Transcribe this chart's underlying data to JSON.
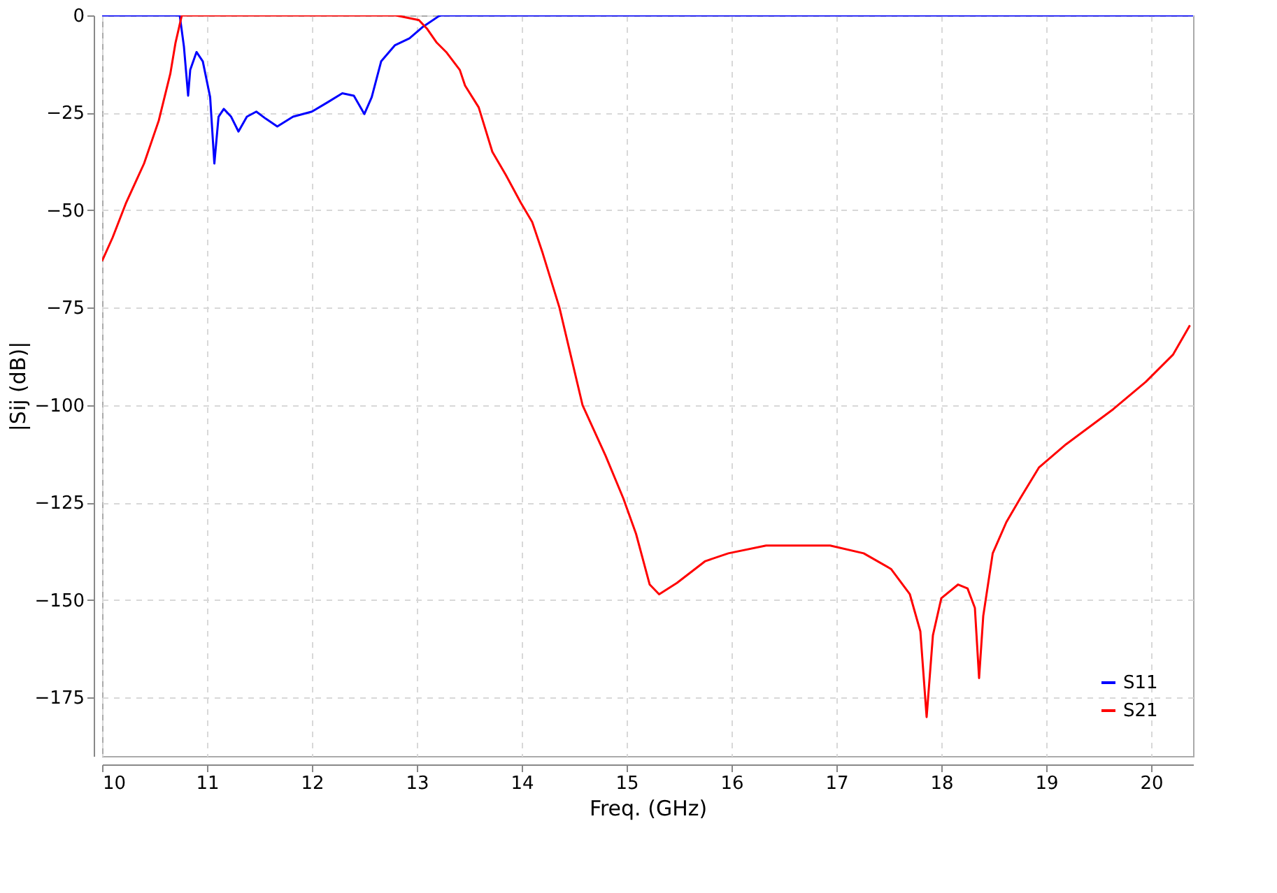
{
  "chart_data": {
    "type": "line",
    "xlabel": "Freq. (GHz)",
    "ylabel": "|Sij (dB)|",
    "xlim": [
      10,
      20.4
    ],
    "ylim": [
      -190,
      0
    ],
    "xticks": [
      10,
      11,
      12,
      13,
      14,
      15,
      16,
      17,
      18,
      19,
      20
    ],
    "yticks": [
      0,
      -25,
      -50,
      -75,
      -100,
      -125,
      -150,
      -175
    ],
    "grid": true,
    "legend": "bottom right",
    "marker": "none",
    "line_style": "solid",
    "series": [
      {
        "name": "S11",
        "color": "#0000ff",
        "x": [
          10,
          10.74,
          10.78,
          10.82,
          10.84,
          10.9,
          10.96,
          11.03,
          11.07,
          11.11,
          11.16,
          11.23,
          11.3,
          11.38,
          11.47,
          11.56,
          11.67,
          11.82,
          12.0,
          12.15,
          12.29,
          12.4,
          12.5,
          12.57,
          12.66,
          12.79,
          12.93,
          13.06,
          13.21,
          13.23,
          20.4
        ],
        "values": [
          0,
          0,
          -8,
          -20.6,
          -14,
          -9.4,
          -11.8,
          -21,
          -38,
          -26,
          -24,
          -26,
          -29.8,
          -26,
          -24.7,
          -26.5,
          -28.5,
          -26,
          -24.7,
          -22.3,
          -20,
          -20.6,
          -25.3,
          -21,
          -11.8,
          -7.7,
          -5.9,
          -2.9,
          -0.2,
          0,
          0
        ]
      },
      {
        "name": "S21",
        "color": "#ff0000",
        "x": [
          10,
          10.1,
          10.23,
          10.4,
          10.54,
          10.65,
          10.7,
          10.76,
          12.8,
          13.02,
          13.1,
          13.19,
          13.28,
          13.41,
          13.46,
          13.59,
          13.72,
          13.85,
          13.99,
          14.1,
          14.2,
          14.36,
          14.58,
          14.8,
          14.97,
          15.09,
          15.22,
          15.31,
          15.48,
          15.75,
          15.97,
          16.33,
          16.94,
          17.26,
          17.52,
          17.7,
          17.8,
          17.86,
          17.92,
          18.0,
          18.16,
          18.25,
          18.32,
          18.36,
          18.4,
          18.49,
          18.62,
          18.75,
          18.93,
          19.19,
          19.64,
          19.95,
          20.21,
          20.37
        ],
        "values": [
          -63,
          -57,
          -48,
          -38,
          -27,
          -15,
          -7,
          0,
          0,
          -1.2,
          -3.5,
          -7,
          -9.4,
          -14,
          -18,
          -23.6,
          -35,
          -41,
          -48,
          -53,
          -61,
          -75,
          -100,
          -113,
          -124,
          -133,
          -146,
          -148.5,
          -145.6,
          -140,
          -138,
          -136,
          -136,
          -138,
          -142,
          -148.5,
          -158,
          -180,
          -159,
          -149.5,
          -146,
          -147,
          -152,
          -170,
          -154,
          -138,
          -130,
          -124,
          -116,
          -110,
          -101,
          -94,
          -87,
          -79.5
        ]
      }
    ]
  }
}
